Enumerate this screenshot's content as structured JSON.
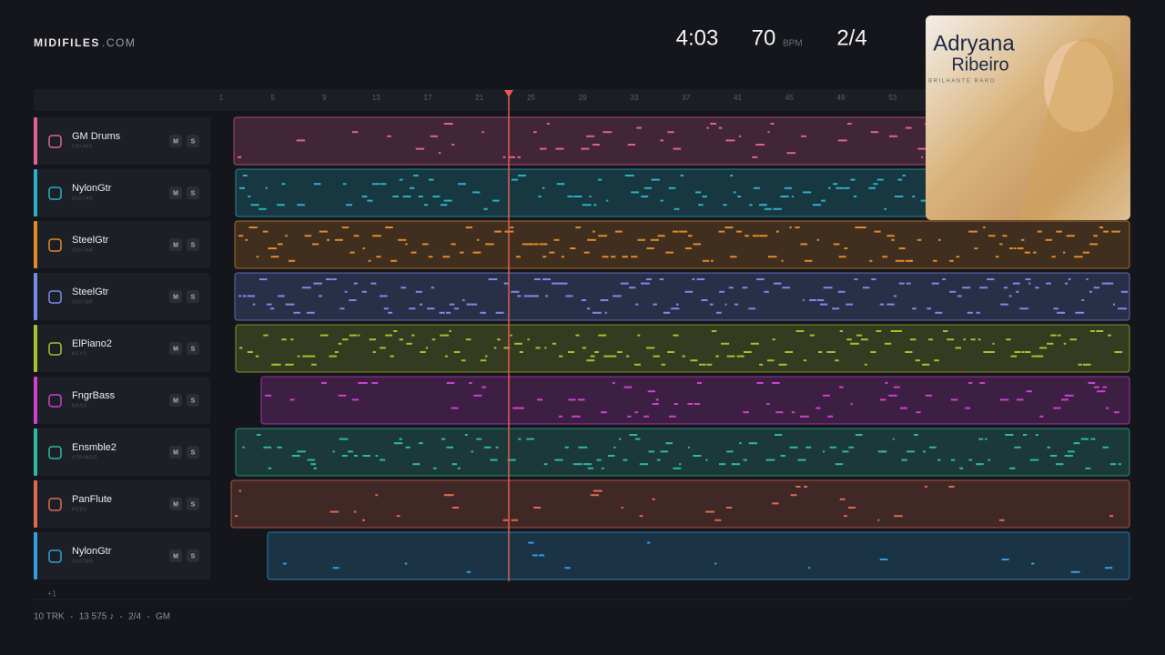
{
  "brand": {
    "name": "MIDIFILES",
    "suffix": ".COM"
  },
  "transport": {
    "duration": "4:03",
    "tempo": 70,
    "tempo_unit": "BPM",
    "meter": "2/4"
  },
  "ruler": [
    1,
    5,
    9,
    13,
    17,
    21,
    25,
    29,
    33,
    37,
    41,
    45,
    49,
    53
  ],
  "buttons": {
    "mute": "M",
    "solo": "S"
  },
  "tracks": [
    {
      "name": "GM Drums",
      "category": "DRUMS",
      "color": "#e0609a"
    },
    {
      "name": "NylonGtr",
      "category": "GUITAR",
      "color": "#2ab0c8"
    },
    {
      "name": "SteelGtr",
      "category": "GUITAR",
      "color": "#e08a2a"
    },
    {
      "name": "SteelGtr",
      "category": "GUITAR",
      "color": "#7a8ae8"
    },
    {
      "name": "ElPiano2",
      "category": "KEYS",
      "color": "#a8c030"
    },
    {
      "name": "FngrBass",
      "category": "BASS",
      "color": "#d040d0"
    },
    {
      "name": "Ensmble2",
      "category": "STRINGS",
      "color": "#30b8a0"
    },
    {
      "name": "PanFlute",
      "category": "REED",
      "color": "#e06a50"
    },
    {
      "name": "NylonGtr",
      "category": "GUITAR",
      "color": "#30a0e0"
    }
  ],
  "more": "+1",
  "footer": [
    "10 TRK",
    "13 575 ♪",
    "2/4",
    "GM"
  ],
  "album": {
    "artist_first": "Adryana",
    "artist_last": "Ribeiro",
    "title": "BRILHANTE RARO"
  }
}
